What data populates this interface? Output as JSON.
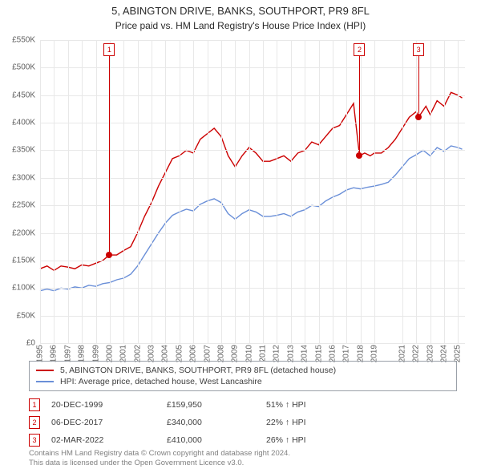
{
  "title": "5, ABINGTON DRIVE, BANKS, SOUTHPORT, PR9 8FL",
  "subtitle": "Price paid vs. HM Land Registry's House Price Index (HPI)",
  "chart": {
    "type": "line",
    "xlim": [
      1995,
      2025.5
    ],
    "ylim": [
      0,
      550000
    ],
    "ytick_step": 50000,
    "ytick_labels": [
      "£0",
      "£50K",
      "£100K",
      "£150K",
      "£200K",
      "£250K",
      "£300K",
      "£350K",
      "£400K",
      "£450K",
      "£500K",
      "£550K"
    ],
    "xticks": [
      1995,
      1996,
      1997,
      1998,
      1999,
      2000,
      2001,
      2002,
      2003,
      2004,
      2005,
      2006,
      2007,
      2008,
      2009,
      2010,
      2011,
      2012,
      2013,
      2014,
      2015,
      2016,
      2017,
      2018,
      2019,
      2021,
      2022,
      2023,
      2024,
      2025
    ],
    "grid_color": "#e8e8e8",
    "alt_band_color": "#f3f5f9",
    "background_color": "#ffffff",
    "line_width": 1.4,
    "marker_color": "#cc0000",
    "series": [
      {
        "name": "price_paid",
        "color": "#cc0000",
        "label": "5, ABINGTON DRIVE, BANKS, SOUTHPORT, PR9 8FL (detached house)",
        "points": [
          [
            1995.0,
            135000
          ],
          [
            1995.5,
            140000
          ],
          [
            1996.0,
            132000
          ],
          [
            1996.5,
            140000
          ],
          [
            1997.0,
            138000
          ],
          [
            1997.5,
            135000
          ],
          [
            1998.0,
            142000
          ],
          [
            1998.5,
            140000
          ],
          [
            1999.0,
            145000
          ],
          [
            1999.5,
            150000
          ],
          [
            1999.97,
            159950
          ],
          [
            2000.5,
            160000
          ],
          [
            2001.0,
            168000
          ],
          [
            2001.5,
            175000
          ],
          [
            2002.0,
            200000
          ],
          [
            2002.5,
            230000
          ],
          [
            2003.0,
            255000
          ],
          [
            2003.5,
            285000
          ],
          [
            2004.0,
            310000
          ],
          [
            2004.5,
            335000
          ],
          [
            2005.0,
            340000
          ],
          [
            2005.5,
            350000
          ],
          [
            2006.0,
            345000
          ],
          [
            2006.5,
            370000
          ],
          [
            2007.0,
            380000
          ],
          [
            2007.5,
            390000
          ],
          [
            2008.0,
            375000
          ],
          [
            2008.5,
            340000
          ],
          [
            2009.0,
            320000
          ],
          [
            2009.5,
            340000
          ],
          [
            2010.0,
            355000
          ],
          [
            2010.5,
            345000
          ],
          [
            2011.0,
            330000
          ],
          [
            2011.5,
            330000
          ],
          [
            2012.0,
            335000
          ],
          [
            2012.5,
            340000
          ],
          [
            2013.0,
            330000
          ],
          [
            2013.5,
            345000
          ],
          [
            2014.0,
            350000
          ],
          [
            2014.5,
            365000
          ],
          [
            2015.0,
            360000
          ],
          [
            2015.5,
            375000
          ],
          [
            2016.0,
            390000
          ],
          [
            2016.5,
            395000
          ],
          [
            2017.0,
            415000
          ],
          [
            2017.5,
            435000
          ],
          [
            2017.93,
            340000
          ],
          [
            2018.3,
            345000
          ],
          [
            2018.7,
            340000
          ],
          [
            2019.0,
            345000
          ],
          [
            2019.5,
            345000
          ],
          [
            2020.0,
            355000
          ],
          [
            2020.5,
            370000
          ],
          [
            2021.0,
            390000
          ],
          [
            2021.5,
            410000
          ],
          [
            2022.0,
            420000
          ],
          [
            2022.17,
            410000
          ],
          [
            2022.7,
            430000
          ],
          [
            2023.0,
            415000
          ],
          [
            2023.5,
            440000
          ],
          [
            2024.0,
            430000
          ],
          [
            2024.5,
            455000
          ],
          [
            2025.0,
            450000
          ],
          [
            2025.3,
            445000
          ]
        ]
      },
      {
        "name": "hpi",
        "color": "#6a8fd8",
        "label": "HPI: Average price, detached house, West Lancashire",
        "points": [
          [
            1995.0,
            95000
          ],
          [
            1995.5,
            98000
          ],
          [
            1996.0,
            95000
          ],
          [
            1996.5,
            100000
          ],
          [
            1997.0,
            98000
          ],
          [
            1997.5,
            102000
          ],
          [
            1998.0,
            100000
          ],
          [
            1998.5,
            105000
          ],
          [
            1999.0,
            103000
          ],
          [
            1999.5,
            108000
          ],
          [
            2000.0,
            110000
          ],
          [
            2000.5,
            115000
          ],
          [
            2001.0,
            118000
          ],
          [
            2001.5,
            125000
          ],
          [
            2002.0,
            140000
          ],
          [
            2002.5,
            160000
          ],
          [
            2003.0,
            180000
          ],
          [
            2003.5,
            200000
          ],
          [
            2004.0,
            218000
          ],
          [
            2004.5,
            232000
          ],
          [
            2005.0,
            238000
          ],
          [
            2005.5,
            243000
          ],
          [
            2006.0,
            240000
          ],
          [
            2006.5,
            252000
          ],
          [
            2007.0,
            258000
          ],
          [
            2007.5,
            262000
          ],
          [
            2008.0,
            255000
          ],
          [
            2008.5,
            235000
          ],
          [
            2009.0,
            225000
          ],
          [
            2009.5,
            235000
          ],
          [
            2010.0,
            242000
          ],
          [
            2010.5,
            238000
          ],
          [
            2011.0,
            230000
          ],
          [
            2011.5,
            230000
          ],
          [
            2012.0,
            232000
          ],
          [
            2012.5,
            235000
          ],
          [
            2013.0,
            230000
          ],
          [
            2013.5,
            238000
          ],
          [
            2014.0,
            242000
          ],
          [
            2014.5,
            250000
          ],
          [
            2015.0,
            248000
          ],
          [
            2015.5,
            258000
          ],
          [
            2016.0,
            265000
          ],
          [
            2016.5,
            270000
          ],
          [
            2017.0,
            278000
          ],
          [
            2017.5,
            282000
          ],
          [
            2018.0,
            280000
          ],
          [
            2018.5,
            283000
          ],
          [
            2019.0,
            285000
          ],
          [
            2019.5,
            288000
          ],
          [
            2020.0,
            292000
          ],
          [
            2020.5,
            305000
          ],
          [
            2021.0,
            320000
          ],
          [
            2021.5,
            335000
          ],
          [
            2022.0,
            342000
          ],
          [
            2022.5,
            350000
          ],
          [
            2023.0,
            340000
          ],
          [
            2023.5,
            355000
          ],
          [
            2024.0,
            348000
          ],
          [
            2024.5,
            358000
          ],
          [
            2025.0,
            355000
          ],
          [
            2025.3,
            352000
          ]
        ]
      }
    ],
    "markers": [
      {
        "n": "1",
        "x": 1999.97,
        "y": 159950
      },
      {
        "n": "2",
        "x": 2017.93,
        "y": 340000
      },
      {
        "n": "3",
        "x": 2022.17,
        "y": 410000
      }
    ]
  },
  "legend": {
    "items": [
      {
        "color": "#cc0000",
        "label": "5, ABINGTON DRIVE, BANKS, SOUTHPORT, PR9 8FL (detached house)"
      },
      {
        "color": "#6a8fd8",
        "label": "HPI: Average price, detached house, West Lancashire"
      }
    ]
  },
  "events": [
    {
      "n": "1",
      "date": "20-DEC-1999",
      "price": "£159,950",
      "pct": "51% ↑ HPI"
    },
    {
      "n": "2",
      "date": "06-DEC-2017",
      "price": "£340,000",
      "pct": "22% ↑ HPI"
    },
    {
      "n": "3",
      "date": "02-MAR-2022",
      "price": "£410,000",
      "pct": "26% ↑ HPI"
    }
  ],
  "footer": {
    "line1": "Contains HM Land Registry data © Crown copyright and database right 2024.",
    "line2": "This data is licensed under the Open Government Licence v3.0."
  }
}
